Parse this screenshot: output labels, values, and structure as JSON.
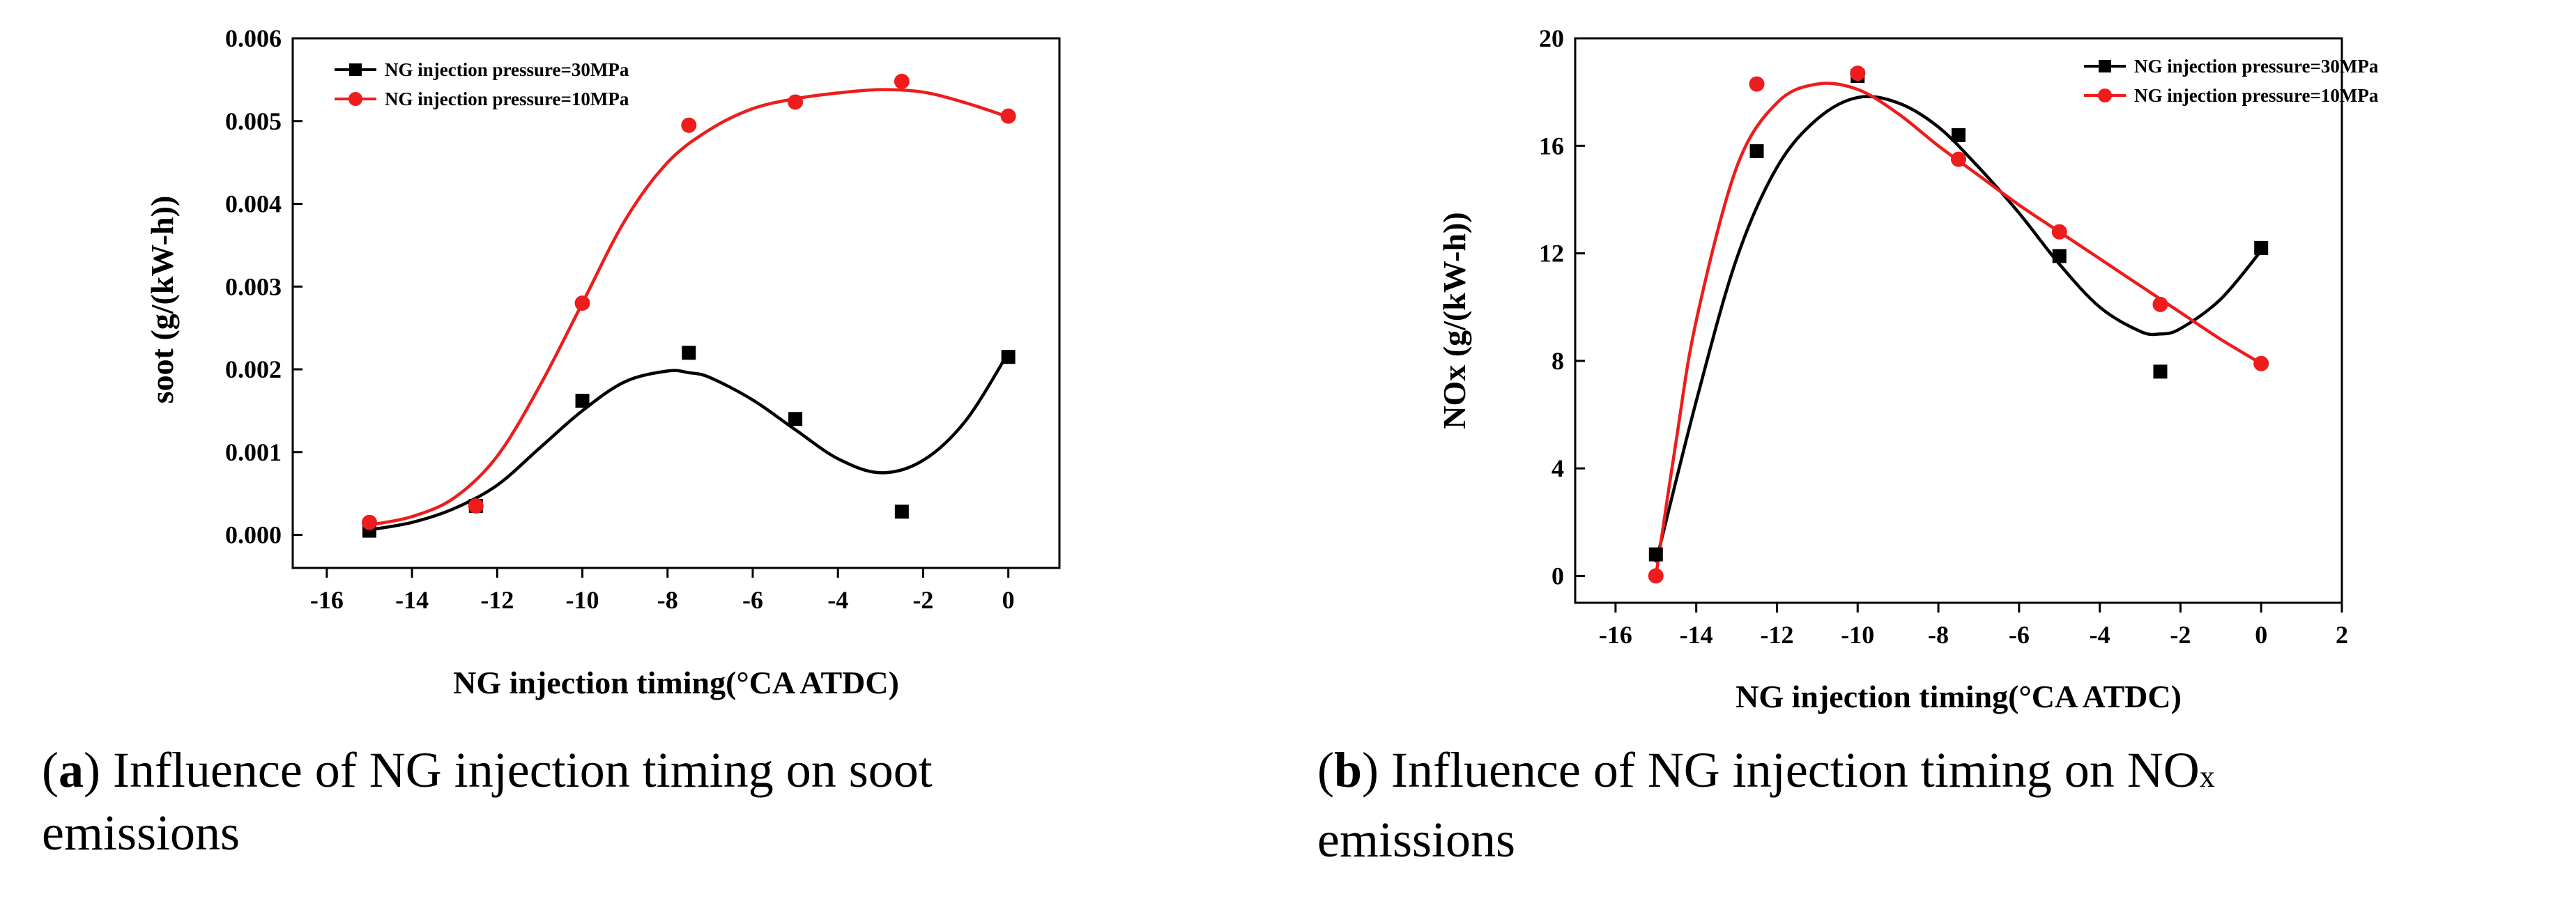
{
  "chart_data": [
    {
      "id": "a",
      "type": "scatter+spline",
      "title": "",
      "xlabel": "NG injection timing(°CA  ATDC)",
      "ylabel": "soot (g/(kW-h))",
      "xlim": [
        -16.8,
        1.2
      ],
      "ylim": [
        -0.0004,
        0.006
      ],
      "xticks": [
        -16,
        -14,
        -12,
        -10,
        -8,
        -6,
        -4,
        -2,
        0
      ],
      "yticks": [
        0.0,
        0.001,
        0.002,
        0.003,
        0.004,
        0.005,
        0.006
      ],
      "ytick_labels": [
        "0.000",
        "0.001",
        "0.002",
        "0.003",
        "0.004",
        "0.005",
        "0.006"
      ],
      "legend_position": "top-left",
      "series": [
        {
          "name": "NG injection pressure=30MPa",
          "color": "#000000",
          "marker": "square",
          "x": [
            -15,
            -12.5,
            -10,
            -7.5,
            -5,
            -2.5,
            0
          ],
          "y": [
            5e-05,
            0.00035,
            0.00162,
            0.0022,
            0.0014,
            0.00028,
            0.00215
          ],
          "fit_curve": [
            [
              -15,
              6e-05
            ],
            [
              -14,
              0.00015
            ],
            [
              -13,
              0.00032
            ],
            [
              -12,
              0.0006
            ],
            [
              -11,
              0.00105
            ],
            [
              -10,
              0.0015
            ],
            [
              -9,
              0.00185
            ],
            [
              -8,
              0.00198
            ],
            [
              -7.5,
              0.00196
            ],
            [
              -7,
              0.0019
            ],
            [
              -6,
              0.00163
            ],
            [
              -5,
              0.00127
            ],
            [
              -4,
              0.00092
            ],
            [
              -3,
              0.00075
            ],
            [
              -2,
              0.0009
            ],
            [
              -1,
              0.00138
            ],
            [
              0,
              0.0022
            ]
          ]
        },
        {
          "name": "NG injection pressure=10MPa",
          "color": "#ee1c1c",
          "marker": "circle",
          "x": [
            -15,
            -12.5,
            -10,
            -7.5,
            -5,
            -2.5,
            0
          ],
          "y": [
            0.00015,
            0.00035,
            0.0028,
            0.00495,
            0.00523,
            0.00548,
            0.00506
          ],
          "fit_curve": [
            [
              -15,
              0.00012
            ],
            [
              -14,
              0.00022
            ],
            [
              -13,
              0.00045
            ],
            [
              -12,
              0.00095
            ],
            [
              -11,
              0.0018
            ],
            [
              -10,
              0.0028
            ],
            [
              -9,
              0.0038
            ],
            [
              -8,
              0.0045
            ],
            [
              -7,
              0.0049
            ],
            [
              -6,
              0.00515
            ],
            [
              -5,
              0.00527
            ],
            [
              -4,
              0.00534
            ],
            [
              -3,
              0.00538
            ],
            [
              -2,
              0.00535
            ],
            [
              -1,
              0.00522
            ],
            [
              0,
              0.00505
            ]
          ]
        }
      ]
    },
    {
      "id": "b",
      "type": "scatter+spline",
      "title": "",
      "xlabel": "NG injection timing(°CA  ATDC)",
      "ylabel": "NOx (g/(kW-h))",
      "xlim": [
        -17,
        2
      ],
      "ylim": [
        -1,
        20
      ],
      "xticks": [
        -16,
        -14,
        -12,
        -10,
        -8,
        -6,
        -4,
        -2,
        0,
        2
      ],
      "yticks": [
        0,
        4,
        8,
        12,
        16,
        20
      ],
      "ytick_labels": [
        "0",
        "4",
        "8",
        "12",
        "16",
        "20"
      ],
      "legend_position": "top-right",
      "series": [
        {
          "name": "NG injection pressure=30MPa",
          "color": "#000000",
          "marker": "square",
          "x": [
            -15,
            -12.5,
            -10,
            -7.5,
            -5,
            -2.5,
            0
          ],
          "y": [
            0.8,
            15.8,
            18.6,
            16.4,
            11.9,
            7.6,
            12.2
          ],
          "fit_curve": [
            [
              -15,
              0.5
            ],
            [
              -14,
              6.5
            ],
            [
              -13,
              11.8
            ],
            [
              -12,
              15.2
            ],
            [
              -11,
              17.0
            ],
            [
              -10,
              17.8
            ],
            [
              -9,
              17.6
            ],
            [
              -8,
              16.7
            ],
            [
              -7,
              15.2
            ],
            [
              -6,
              13.5
            ],
            [
              -5,
              11.6
            ],
            [
              -4,
              10.0
            ],
            [
              -3,
              9.1
            ],
            [
              -2.5,
              9.0
            ],
            [
              -2,
              9.2
            ],
            [
              -1,
              10.3
            ],
            [
              0,
              12.1
            ]
          ]
        },
        {
          "name": "NG injection pressure=10MPa",
          "color": "#ee1c1c",
          "marker": "circle",
          "x": [
            -15,
            -12.5,
            -10,
            -7.5,
            -5,
            -2.5,
            0
          ],
          "y": [
            0.0,
            18.3,
            18.7,
            15.5,
            12.8,
            10.1,
            7.9
          ],
          "fit_curve": [
            [
              -15,
              0.0
            ],
            [
              -14.5,
              5.0
            ],
            [
              -14,
              9.5
            ],
            [
              -13,
              15.2
            ],
            [
              -12,
              17.6
            ],
            [
              -11,
              18.3
            ],
            [
              -10,
              18.1
            ],
            [
              -9,
              17.2
            ],
            [
              -8,
              16.0
            ],
            [
              -7,
              14.9
            ],
            [
              -6,
              13.8
            ],
            [
              -5,
              12.8
            ],
            [
              -4,
              11.8
            ],
            [
              -3,
              10.8
            ],
            [
              -2,
              9.8
            ],
            [
              -1,
              8.8
            ],
            [
              0,
              7.9
            ]
          ]
        }
      ]
    }
  ],
  "captions": {
    "a": {
      "letter": "a",
      "text": ") Influence of NG injection timing on soot",
      "line2": "emissions"
    },
    "b": {
      "letter": "b",
      "text": ") Influence of NG injection timing on NO",
      "subscript": "x",
      "line2": "emissions"
    }
  }
}
